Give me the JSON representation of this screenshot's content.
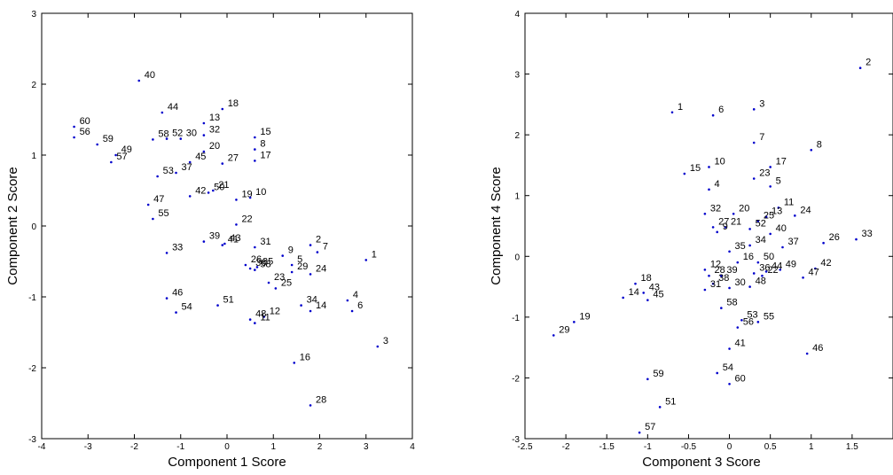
{
  "chart_data": [
    {
      "type": "scatter",
      "xlabel": "Component 1 Score",
      "ylabel": "Component 2 Score",
      "xlim": [
        -4,
        4
      ],
      "ylim": [
        -3,
        3
      ],
      "xticks": [
        -4,
        -3,
        -2,
        -1,
        0,
        1,
        2,
        3,
        4
      ],
      "yticks": [
        -3,
        -2,
        -1,
        0,
        1,
        2,
        3
      ],
      "marker_color": "#0000cc",
      "points": [
        {
          "label": "40",
          "x": -1.9,
          "y": 2.05
        },
        {
          "label": "44",
          "x": -1.4,
          "y": 1.6
        },
        {
          "label": "18",
          "x": -0.1,
          "y": 1.65
        },
        {
          "label": "13",
          "x": -0.5,
          "y": 1.45
        },
        {
          "label": "60",
          "x": -3.3,
          "y": 1.4
        },
        {
          "label": "56",
          "x": -3.3,
          "y": 1.25
        },
        {
          "label": "59",
          "x": -2.8,
          "y": 1.15
        },
        {
          "label": "58",
          "x": -1.6,
          "y": 1.22
        },
        {
          "label": "52",
          "x": -1.3,
          "y": 1.23
        },
        {
          "label": "30",
          "x": -1.0,
          "y": 1.23
        },
        {
          "label": "32",
          "x": -0.5,
          "y": 1.28
        },
        {
          "label": "15",
          "x": 0.6,
          "y": 1.25
        },
        {
          "label": "49",
          "x": -2.4,
          "y": 1.0
        },
        {
          "label": "57",
          "x": -2.5,
          "y": 0.9
        },
        {
          "label": "8",
          "x": 0.6,
          "y": 1.08
        },
        {
          "label": "20",
          "x": -0.5,
          "y": 1.05
        },
        {
          "label": "17",
          "x": 0.6,
          "y": 0.92
        },
        {
          "label": "45",
          "x": -0.8,
          "y": 0.9
        },
        {
          "label": "27",
          "x": -0.1,
          "y": 0.88
        },
        {
          "label": "53",
          "x": -1.5,
          "y": 0.7
        },
        {
          "label": "37",
          "x": -1.1,
          "y": 0.75
        },
        {
          "label": "42",
          "x": -0.8,
          "y": 0.42
        },
        {
          "label": "50",
          "x": -0.4,
          "y": 0.47
        },
        {
          "label": "21",
          "x": -0.3,
          "y": 0.5
        },
        {
          "label": "19",
          "x": 0.2,
          "y": 0.37
        },
        {
          "label": "10",
          "x": 0.5,
          "y": 0.4
        },
        {
          "label": "47",
          "x": -1.7,
          "y": 0.3
        },
        {
          "label": "55",
          "x": -1.6,
          "y": 0.1
        },
        {
          "label": "22",
          "x": 0.2,
          "y": 0.02
        },
        {
          "label": "39",
          "x": -0.5,
          "y": -0.22
        },
        {
          "label": "41",
          "x": -0.1,
          "y": -0.27
        },
        {
          "label": "43",
          "x": -0.05,
          "y": -0.25
        },
        {
          "label": "31",
          "x": 0.6,
          "y": -0.3
        },
        {
          "label": "33",
          "x": -1.3,
          "y": -0.38
        },
        {
          "label": "2",
          "x": 1.8,
          "y": -0.27
        },
        {
          "label": "7",
          "x": 1.95,
          "y": -0.37
        },
        {
          "label": "9",
          "x": 1.2,
          "y": -0.42
        },
        {
          "label": "1",
          "x": 3.0,
          "y": -0.48
        },
        {
          "label": "26",
          "x": 0.4,
          "y": -0.55
        },
        {
          "label": "36",
          "x": 0.5,
          "y": -0.6
        },
        {
          "label": "58",
          "x": 0.6,
          "y": -0.62
        },
        {
          "label": "35",
          "x": 0.65,
          "y": -0.58
        },
        {
          "label": "5",
          "x": 1.4,
          "y": -0.55
        },
        {
          "label": "29",
          "x": 1.4,
          "y": -0.65
        },
        {
          "label": "24",
          "x": 1.8,
          "y": -0.68
        },
        {
          "label": "23",
          "x": 0.9,
          "y": -0.8
        },
        {
          "label": "25",
          "x": 1.05,
          "y": -0.88
        },
        {
          "label": "46",
          "x": -1.3,
          "y": -1.02
        },
        {
          "label": "4",
          "x": 2.6,
          "y": -1.05
        },
        {
          "label": "34",
          "x": 1.6,
          "y": -1.12
        },
        {
          "label": "51",
          "x": -0.2,
          "y": -1.12
        },
        {
          "label": "54",
          "x": -1.1,
          "y": -1.22
        },
        {
          "label": "14",
          "x": 1.8,
          "y": -1.2
        },
        {
          "label": "6",
          "x": 2.7,
          "y": -1.2
        },
        {
          "label": "12",
          "x": 0.8,
          "y": -1.28
        },
        {
          "label": "48",
          "x": 0.5,
          "y": -1.32
        },
        {
          "label": "11",
          "x": 0.6,
          "y": -1.37
        },
        {
          "label": "3",
          "x": 3.25,
          "y": -1.7
        },
        {
          "label": "16",
          "x": 1.45,
          "y": -1.93
        },
        {
          "label": "28",
          "x": 1.8,
          "y": -2.53
        }
      ]
    },
    {
      "type": "scatter",
      "xlabel": "Component 3 Score",
      "ylabel": "Component 4 Score",
      "xlim": [
        -2.5,
        2
      ],
      "ylim": [
        -3,
        4
      ],
      "xticks": [
        -2.5,
        -2,
        -1.5,
        -1,
        -0.5,
        0,
        0.5,
        1,
        1.5
      ],
      "yticks": [
        -3,
        -2,
        -1,
        0,
        1,
        2,
        3,
        4
      ],
      "marker_color": "#0000cc",
      "points": [
        {
          "label": "2",
          "x": 1.6,
          "y": 3.1
        },
        {
          "label": "1",
          "x": -0.7,
          "y": 2.37
        },
        {
          "label": "6",
          "x": -0.2,
          "y": 2.32
        },
        {
          "label": "3",
          "x": 0.3,
          "y": 2.42
        },
        {
          "label": "7",
          "x": 0.3,
          "y": 1.87
        },
        {
          "label": "8",
          "x": 1.0,
          "y": 1.75
        },
        {
          "label": "15",
          "x": -0.55,
          "y": 1.36
        },
        {
          "label": "10",
          "x": -0.25,
          "y": 1.47
        },
        {
          "label": "17",
          "x": 0.5,
          "y": 1.47
        },
        {
          "label": "23",
          "x": 0.3,
          "y": 1.28
        },
        {
          "label": "5",
          "x": 0.5,
          "y": 1.15
        },
        {
          "label": "4",
          "x": -0.25,
          "y": 1.1
        },
        {
          "label": "11",
          "x": 0.6,
          "y": 0.8
        },
        {
          "label": "32",
          "x": -0.3,
          "y": 0.7
        },
        {
          "label": "20",
          "x": 0.05,
          "y": 0.7
        },
        {
          "label": "13",
          "x": 0.45,
          "y": 0.65
        },
        {
          "label": "24",
          "x": 0.8,
          "y": 0.67
        },
        {
          "label": "25",
          "x": 0.35,
          "y": 0.58
        },
        {
          "label": "27",
          "x": -0.2,
          "y": 0.48
        },
        {
          "label": "21",
          "x": -0.05,
          "y": 0.48
        },
        {
          "label": "9",
          "x": -0.15,
          "y": 0.4
        },
        {
          "label": "52",
          "x": 0.25,
          "y": 0.45
        },
        {
          "label": "40",
          "x": 0.5,
          "y": 0.37
        },
        {
          "label": "35",
          "x": 0.0,
          "y": 0.08
        },
        {
          "label": "34",
          "x": 0.25,
          "y": 0.18
        },
        {
          "label": "37",
          "x": 0.65,
          "y": 0.15
        },
        {
          "label": "26",
          "x": 1.15,
          "y": 0.22
        },
        {
          "label": "33",
          "x": 1.55,
          "y": 0.28
        },
        {
          "label": "16",
          "x": 0.1,
          "y": -0.1
        },
        {
          "label": "50",
          "x": 0.35,
          "y": -0.1
        },
        {
          "label": "12",
          "x": -0.3,
          "y": -0.22
        },
        {
          "label": "42",
          "x": 1.05,
          "y": -0.2
        },
        {
          "label": "44",
          "x": 0.45,
          "y": -0.25
        },
        {
          "label": "49",
          "x": 0.62,
          "y": -0.22
        },
        {
          "label": "36",
          "x": 0.3,
          "y": -0.28
        },
        {
          "label": "22",
          "x": 0.4,
          "y": -0.32
        },
        {
          "label": "47",
          "x": 0.9,
          "y": -0.35
        },
        {
          "label": "28",
          "x": -0.25,
          "y": -0.32
        },
        {
          "label": "39",
          "x": -0.1,
          "y": -0.32
        },
        {
          "label": "38",
          "x": -0.2,
          "y": -0.45
        },
        {
          "label": "31",
          "x": -0.3,
          "y": -0.55
        },
        {
          "label": "30",
          "x": 0.0,
          "y": -0.52
        },
        {
          "label": "48",
          "x": 0.25,
          "y": -0.5
        },
        {
          "label": "18",
          "x": -1.15,
          "y": -0.45
        },
        {
          "label": "43",
          "x": -1.05,
          "y": -0.6
        },
        {
          "label": "14",
          "x": -1.3,
          "y": -0.68
        },
        {
          "label": "45",
          "x": -1.0,
          "y": -0.72
        },
        {
          "label": "58",
          "x": -0.1,
          "y": -0.85
        },
        {
          "label": "53",
          "x": 0.15,
          "y": -1.05
        },
        {
          "label": "55",
          "x": 0.35,
          "y": -1.08
        },
        {
          "label": "56",
          "x": 0.1,
          "y": -1.17
        },
        {
          "label": "19",
          "x": -1.9,
          "y": -1.08
        },
        {
          "label": "29",
          "x": -2.15,
          "y": -1.3
        },
        {
          "label": "41",
          "x": 0.0,
          "y": -1.52
        },
        {
          "label": "46",
          "x": 0.95,
          "y": -1.6
        },
        {
          "label": "59",
          "x": -1.0,
          "y": -2.02
        },
        {
          "label": "54",
          "x": -0.15,
          "y": -1.92
        },
        {
          "label": "60",
          "x": 0.0,
          "y": -2.1
        },
        {
          "label": "51",
          "x": -0.85,
          "y": -2.48
        },
        {
          "label": "57",
          "x": -1.1,
          "y": -2.9
        }
      ]
    }
  ]
}
